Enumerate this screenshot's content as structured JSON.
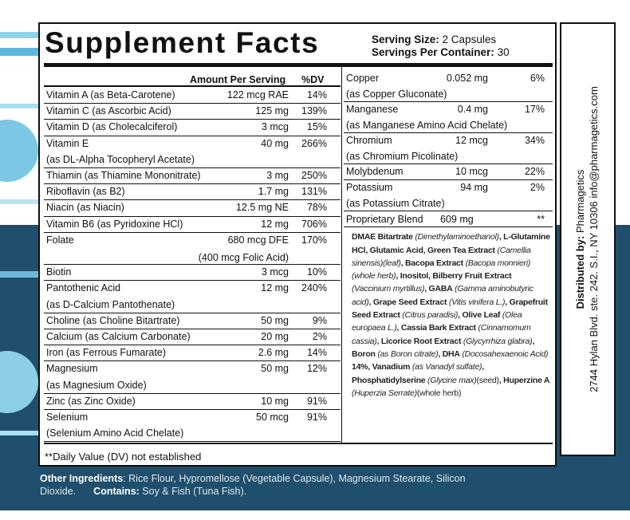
{
  "header": {
    "title": "Supplement Facts",
    "serving_size_label": "Serving Size:",
    "serving_size": "2 Capsules",
    "servings_label": "Servings Per Container:",
    "servings": "30"
  },
  "left_table": {
    "columns": [
      "Amount Per Serving",
      "%DV"
    ],
    "rows": [
      {
        "name": "Vitamin A (as Beta-Carotene)",
        "amount": "122 mcg RAE",
        "dv": "14%"
      },
      {
        "name": "Vitamin C (as Ascorbic Acid)",
        "amount": "125 mg",
        "dv": "139%"
      },
      {
        "name": "Vitamin D (as Cholecalciferol)",
        "amount": "3 mcg",
        "dv": "15%"
      },
      {
        "name": "Vitamin E",
        "note": "(as DL-Alpha Tocopheryl Acetate)",
        "amount": "40 mg",
        "dv": "266%"
      },
      {
        "name": "Thiamin (as Thiamine Mononitrate)",
        "amount": "3 mg",
        "dv": "250%"
      },
      {
        "name": "Riboflavin (as B2)",
        "amount": "1.7 mg",
        "dv": "131%"
      },
      {
        "name": "Niacin (as Niacin)",
        "amount": "12.5 mg NE",
        "dv": "78%"
      },
      {
        "name": "Vitamin B6 (as Pyridoxine HCl)",
        "amount": "12 mg",
        "dv": "706%"
      },
      {
        "name": "Folate",
        "amount": "680 mcg DFE",
        "amount_note": "(400 mcg Folic Acid)",
        "dv": "170%"
      },
      {
        "name": "Biotin",
        "amount": "3 mcg",
        "dv": "10%"
      },
      {
        "name": "Pantothenic Acid",
        "note": "(as D-Calcium Pantothenate)",
        "amount": "12 mg",
        "dv": "240%"
      },
      {
        "name": "Choline (as Choline Bitartrate)",
        "amount": "50 mg",
        "dv": "9%"
      },
      {
        "name": "Calcium (as Calcium Carbonate)",
        "amount": "20 mg",
        "dv": "2%"
      },
      {
        "name": "Iron (as Ferrous Fumarate)",
        "amount": "2.6 mg",
        "dv": "14%"
      },
      {
        "name": "Magnesium",
        "note": "(as Magnesium Oxide)",
        "amount": "50 mg",
        "dv": "12%"
      },
      {
        "name": "Zinc (as Zinc Oxide)",
        "amount": "10 mg",
        "dv": "91%"
      },
      {
        "name": "Selenium",
        "note": "(Selenium Amino Acid Chelate)",
        "amount": "50 mcg",
        "dv": "91%"
      }
    ]
  },
  "right_table": {
    "rows": [
      {
        "name": "Copper",
        "note": "(as Copper Gluconate)",
        "amount": "0.052 mg",
        "dv": "6%"
      },
      {
        "name": "Manganese",
        "note": "(as Manganese Amino Acid Chelate)",
        "amount": "0.4 mg",
        "dv": "17%"
      },
      {
        "name": "Chromium",
        "note": "(as Chromium Picolinate)",
        "amount": "12 mcg",
        "dv": "34%"
      },
      {
        "name": "Molybdenum",
        "amount": "10 mcg",
        "dv": "22%"
      },
      {
        "name": "Potassium",
        "note": "(as Potassium Citrate)",
        "amount": "94 mg",
        "dv": "2%"
      }
    ]
  },
  "blend": {
    "name": "Proprietary Blend",
    "amount": "609 mg",
    "dv": "**",
    "ingredients": [
      {
        "text": "DMAE Bitartrate",
        "style": "bold"
      },
      {
        "text": " (Dimethylaminoethanol)",
        "style": "italic"
      },
      {
        "text": ", L-Glutamine HCl, Glutamic Acid, Green Tea Extract",
        "style": "bold"
      },
      {
        "text": " (Camellia sinensis)(leaf)",
        "style": "italic"
      },
      {
        "text": ", Bacopa Extract",
        "style": "bold"
      },
      {
        "text": " (Bacopa monnieri)(whole herb)",
        "style": "italic"
      },
      {
        "text": ", Inositol, Bilberry Fruit Extract",
        "style": "bold"
      },
      {
        "text": " (Vaccinium myrtillus)",
        "style": "italic"
      },
      {
        "text": ", GABA",
        "style": "bold"
      },
      {
        "text": " (Gamma aminobutyric acid)",
        "style": "italic"
      },
      {
        "text": ", Grape Seed Extract",
        "style": "bold"
      },
      {
        "text": " (Vitis vinifera L.)",
        "style": "italic"
      },
      {
        "text": ", Grapefruit Seed Extract",
        "style": "bold"
      },
      {
        "text": " (Citrus paradisi)",
        "style": "italic"
      },
      {
        "text": ", Olive Leaf",
        "style": "bold"
      },
      {
        "text": " (Olea europaea L.)",
        "style": "italic"
      },
      {
        "text": ", Cassia Bark Extract",
        "style": "bold"
      },
      {
        "text": " (Cinnamomum cassia)",
        "style": "italic"
      },
      {
        "text": ", Licorice Root Extract",
        "style": "bold"
      },
      {
        "text": " (Glycyrrhiza glabra)",
        "style": "italic"
      },
      {
        "text": ", Boron",
        "style": "bold"
      },
      {
        "text": " (as Boron citrate)",
        "style": "italic"
      },
      {
        "text": ", DHA",
        "style": "bold"
      },
      {
        "text": " (Docosahexaenoic Acid)",
        "style": "italic"
      },
      {
        "text": " 14%, Vanadium",
        "style": "bold"
      },
      {
        "text": " (as Vanadyl sulfate)",
        "style": "italic"
      },
      {
        "text": ", Phosphatidylserine",
        "style": "bold"
      },
      {
        "text": " (Glycine max)",
        "style": "italic"
      },
      {
        "text": "(seed)",
        "style": "normal"
      },
      {
        "text": ", Huperzine A",
        "style": "bold"
      },
      {
        "text": " (Huperzia Serrate)",
        "style": "italic"
      },
      {
        "text": "(whole herb)",
        "style": "normal"
      }
    ]
  },
  "footnote": "**Daily Value (DV) not established",
  "other_ingredients": {
    "label": "Other Ingredients",
    "text": ": Rice Flour, Hypromellose (Vegetable Capsule), Magnesium Stearate, Silicon Dioxide.",
    "contains_label": "Contains:",
    "contains_text": "Soy & Fish (Tuna Fish)."
  },
  "distributor": {
    "label": "Distributed by:",
    "name": "Pharmagetics",
    "address": "2744 Hylan Blvd. ste. 242. S.I., NY 10306 info@pharmagetics.com"
  }
}
